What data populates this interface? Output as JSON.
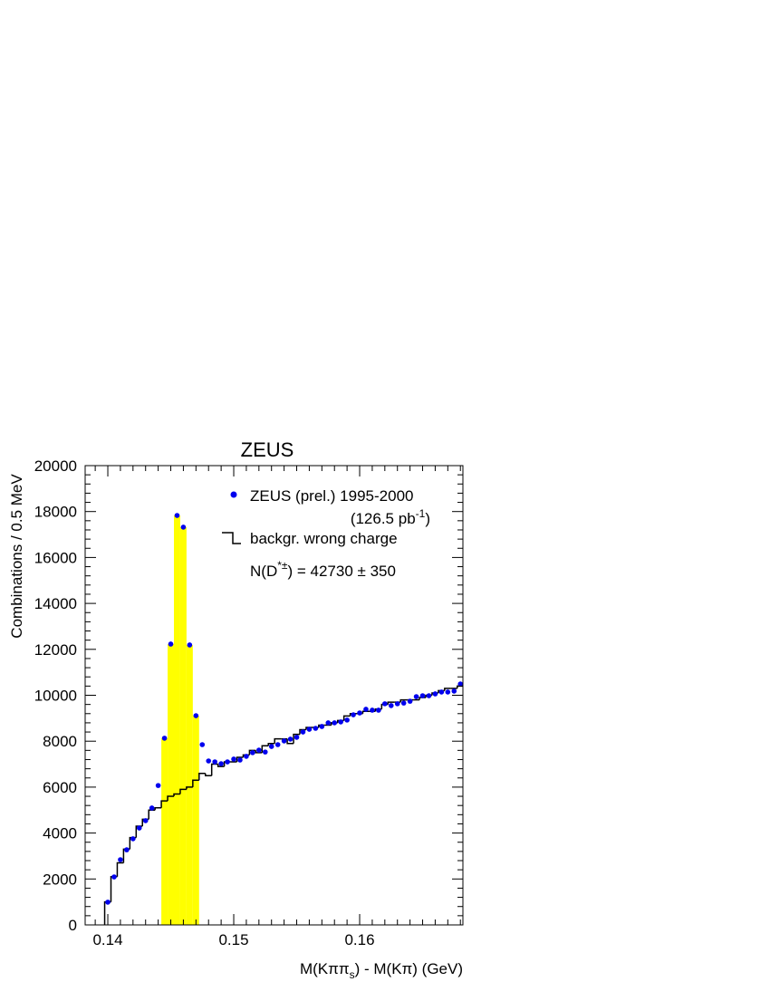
{
  "chart_data": {
    "type": "scatter",
    "title": "ZEUS",
    "ylabel": "Combinations / 0.5 MeV",
    "xlabel_parts": [
      "M(Kππ",
      "s",
      ") - M(Kπ)  (GeV)"
    ],
    "xlim": [
      0.1382,
      0.1682
    ],
    "ylim": [
      0,
      20000
    ],
    "xticks": [
      0.14,
      0.15,
      0.16
    ],
    "yticks": [
      0,
      2000,
      4000,
      6000,
      8000,
      10000,
      12000,
      14000,
      16000,
      18000,
      20000
    ],
    "x_minor_divisions": 10,
    "y_minor_divisions": 5,
    "highlight_range": [
      0.14425,
      0.14725
    ],
    "highlight_color": "#ffff00",
    "series": [
      {
        "type": "scatter",
        "name": "ZEUS (prel.) 1995-2000",
        "name_line2_parts": [
          "(126.5 pb",
          "-1",
          ")"
        ],
        "color": "#0000ee",
        "x": [
          0.14,
          0.1405,
          0.141,
          0.1415,
          0.142,
          0.1425,
          0.143,
          0.1435,
          0.144,
          0.1445,
          0.145,
          0.1455,
          0.146,
          0.1465,
          0.147,
          0.1475,
          0.148,
          0.1485,
          0.149,
          0.1495,
          0.15,
          0.1505,
          0.151,
          0.1515,
          0.152,
          0.1525,
          0.153,
          0.1535,
          0.154,
          0.1545,
          0.155,
          0.1555,
          0.156,
          0.1565,
          0.157,
          0.1575,
          0.158,
          0.1585,
          0.159,
          0.1595,
          0.16,
          0.1605,
          0.161,
          0.1615,
          0.162,
          0.1625,
          0.163,
          0.1635,
          0.164,
          0.1645,
          0.165,
          0.1655,
          0.166,
          0.1665,
          0.167,
          0.1675,
          0.168
        ],
        "values": [
          990,
          2090,
          2840,
          3270,
          3750,
          4220,
          4540,
          5090,
          6070,
          8130,
          12230,
          17830,
          17320,
          12190,
          9110,
          7850,
          7140,
          7100,
          7020,
          7100,
          7220,
          7180,
          7340,
          7500,
          7610,
          7530,
          7770,
          7850,
          8010,
          8090,
          8170,
          8400,
          8520,
          8560,
          8640,
          8800,
          8800,
          8840,
          8920,
          9150,
          9230,
          9390,
          9350,
          9350,
          9630,
          9550,
          9630,
          9660,
          9740,
          9940,
          9980,
          9980,
          10060,
          10140,
          10140,
          10180,
          10490
        ]
      },
      {
        "type": "step",
        "name": "backgr. wrong charge",
        "color": "#000000",
        "bins": [
          0.13975,
          0.14025,
          0.14075,
          0.14125,
          0.14175,
          0.14225,
          0.14275,
          0.14325,
          0.14375,
          0.14425,
          0.14475,
          0.14525,
          0.14575,
          0.14625,
          0.14675,
          0.14725,
          0.14775,
          0.14825,
          0.14875,
          0.14925,
          0.14975,
          0.15025,
          0.15075,
          0.15125,
          0.15175,
          0.15225,
          0.15275,
          0.15325,
          0.15375,
          0.15425,
          0.15475,
          0.15525,
          0.15575,
          0.15625,
          0.15675,
          0.15725,
          0.15775,
          0.15825,
          0.15875,
          0.15925,
          0.15975,
          0.16025,
          0.16075,
          0.16125,
          0.16175,
          0.16225,
          0.16275,
          0.16325,
          0.16375,
          0.16425,
          0.16475,
          0.16525,
          0.16575,
          0.16625,
          0.16675,
          0.16725,
          0.16775,
          0.16825
        ],
        "values": [
          1000,
          2100,
          2700,
          3300,
          3800,
          4300,
          4600,
          5000,
          5100,
          5400,
          5600,
          5700,
          5900,
          6000,
          6300,
          6600,
          6500,
          7000,
          6900,
          7100,
          7100,
          7300,
          7400,
          7600,
          7500,
          7800,
          7900,
          8100,
          8100,
          7900,
          8300,
          8500,
          8600,
          8600,
          8700,
          8700,
          8800,
          8900,
          9100,
          9200,
          9200,
          9300,
          9300,
          9400,
          9600,
          9700,
          9700,
          9800,
          9800,
          9800,
          9900,
          10000,
          10100,
          10200,
          10300,
          10300,
          10400
        ]
      }
    ],
    "annotation_parts": [
      "N(D",
      "*±",
      ") = 42730 ± 350"
    ]
  }
}
